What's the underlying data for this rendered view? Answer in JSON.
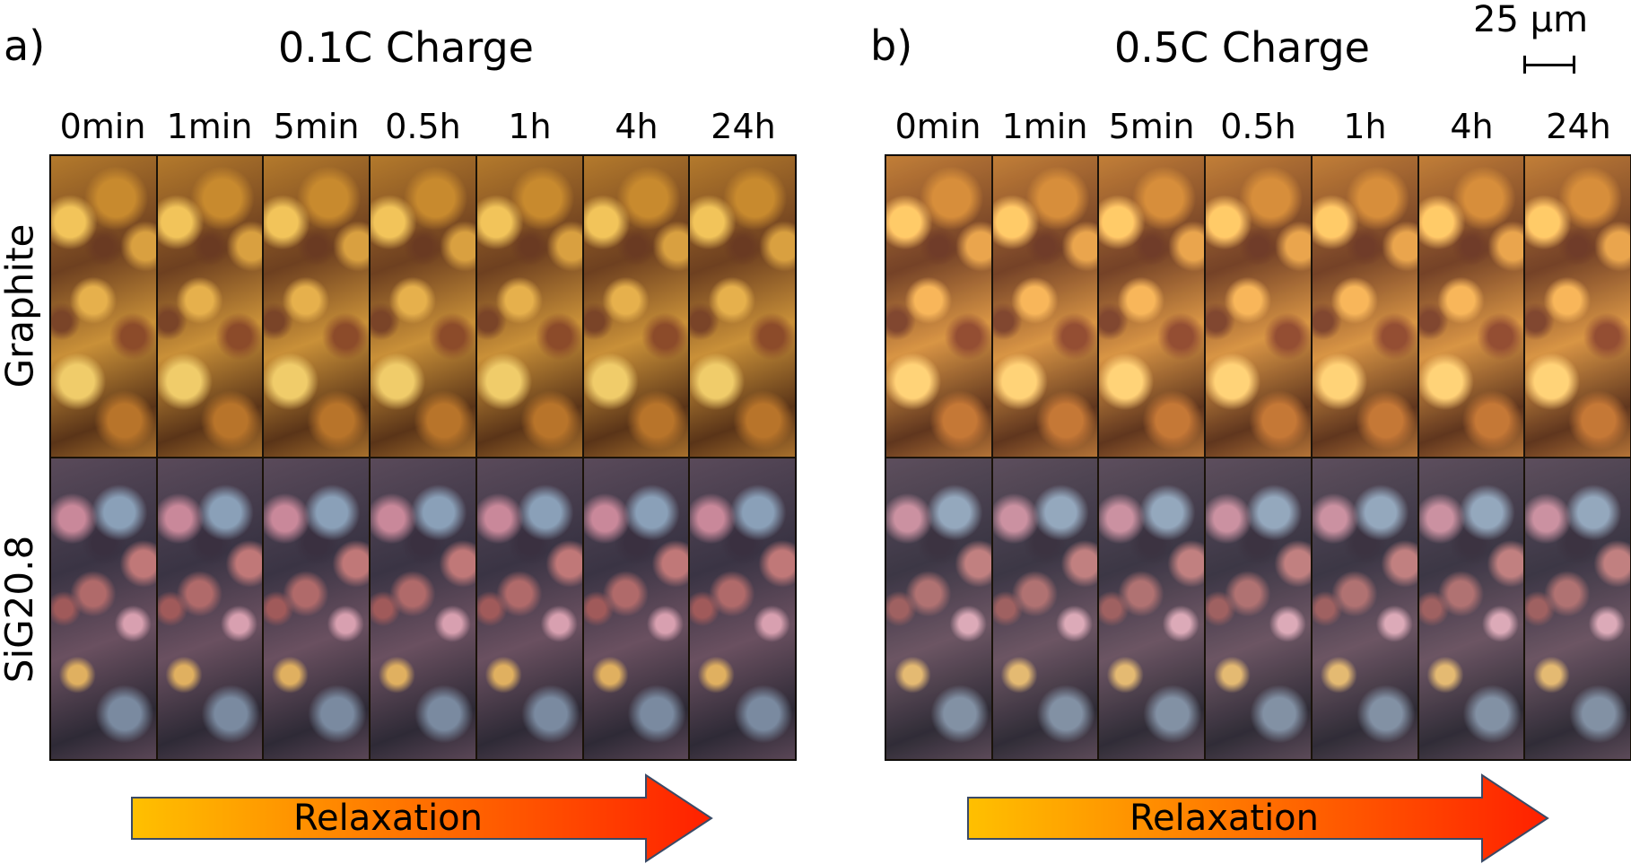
{
  "panels": [
    {
      "letter": "a)",
      "title": "0.1C Charge",
      "time_labels": [
        "0min",
        "1min",
        "5min",
        "0.5h",
        "1h",
        "4h",
        "24h"
      ],
      "rows": [
        "Graphite",
        "SiG20.8"
      ],
      "arrow_label": "Relaxation"
    },
    {
      "letter": "b)",
      "title": "0.5C Charge",
      "time_labels": [
        "0min",
        "1min",
        "5min",
        "0.5h",
        "1h",
        "4h",
        "24h"
      ],
      "arrow_label": "Relaxation"
    }
  ],
  "scale_bar": {
    "label": "25 μm"
  },
  "colors": {
    "arrow_start": "#ffc000",
    "arrow_end": "#ff2000",
    "arrow_stroke": "#3a4a66"
  }
}
